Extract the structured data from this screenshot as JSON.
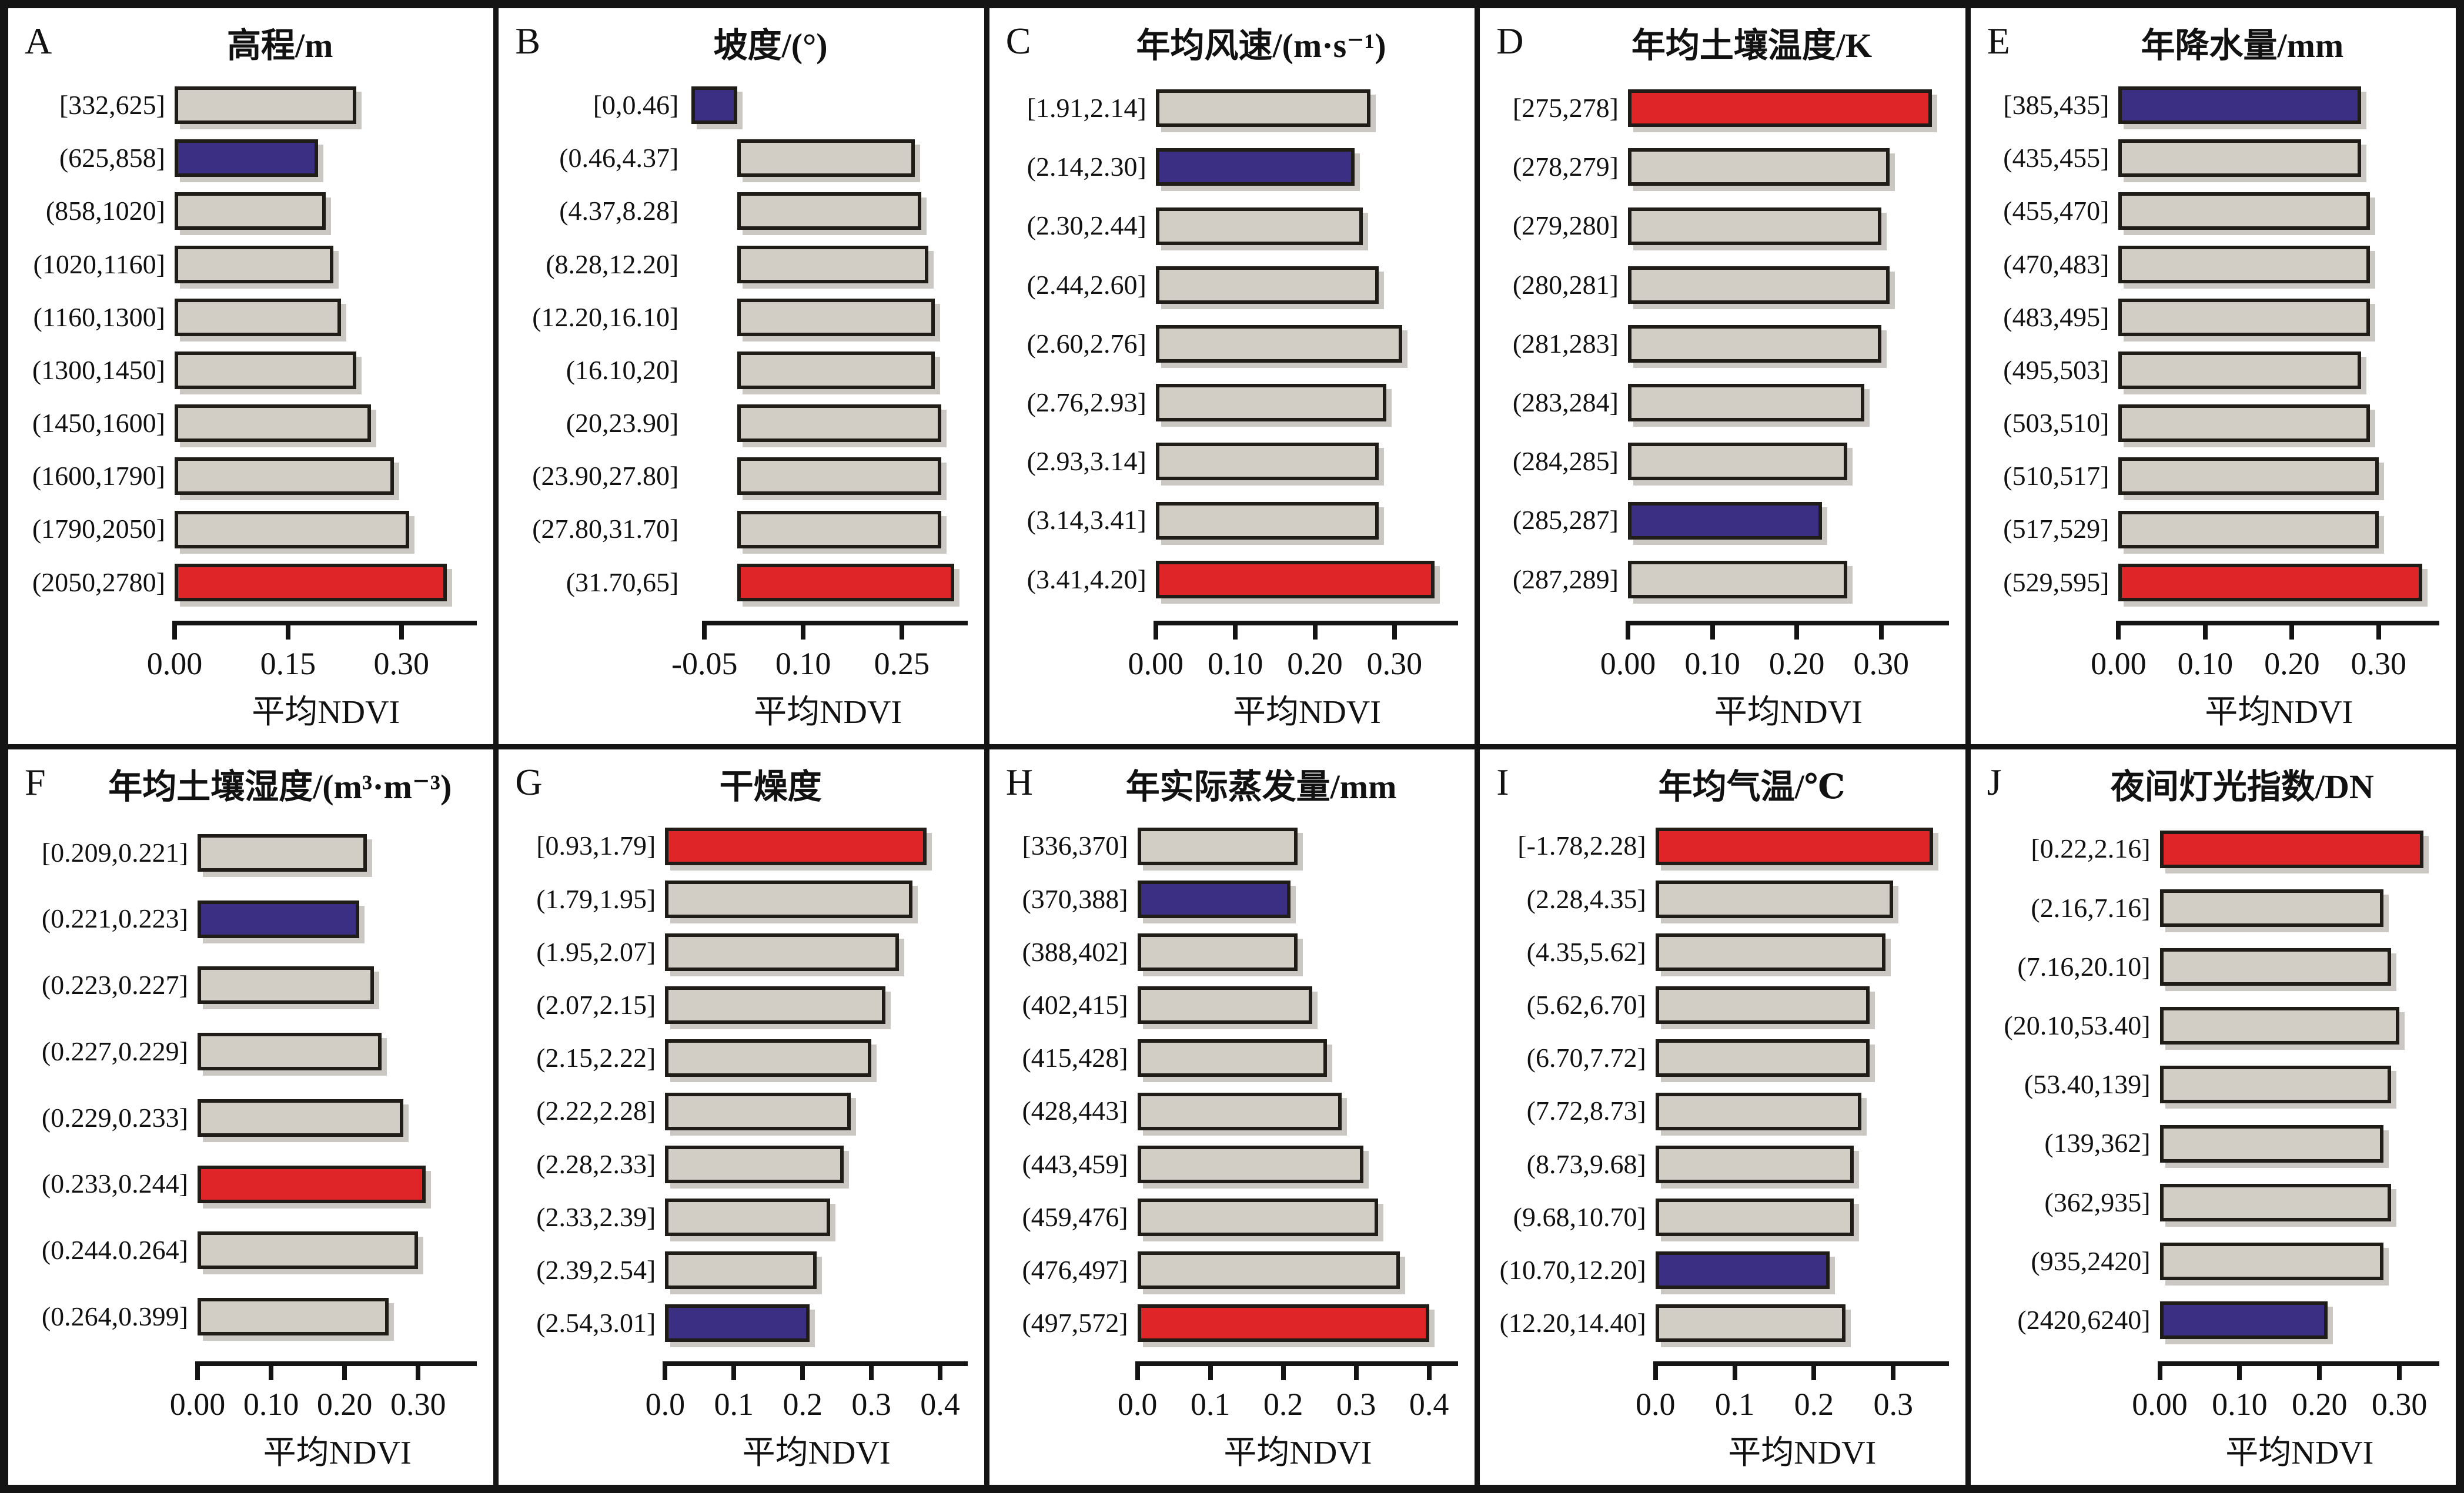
{
  "figure_caption": "",
  "colors": {
    "bar_base": "#d2cec6",
    "bar_min": "#3b2f84",
    "bar_max": "#e02528",
    "bar_border": "#201c18",
    "frame": "#141414",
    "background": "#ffffff"
  },
  "chart_data": [
    {
      "id": "A",
      "type": "bar",
      "orientation": "horizontal",
      "title": "高程/m",
      "xlabel": "平均NDVI",
      "categories": [
        "[332,625]",
        "(625,858]",
        "(858,1020]",
        "(1020,1160]",
        "(1160,1300]",
        "(1300,1450]",
        "(1450,1600]",
        "(1600,1790]",
        "(1790,2050]",
        "(2050,2780]"
      ],
      "values": [
        0.24,
        0.19,
        0.2,
        0.21,
        0.22,
        0.24,
        0.26,
        0.29,
        0.31,
        0.36
      ],
      "roles": [
        "base",
        "min",
        "base",
        "base",
        "base",
        "base",
        "base",
        "base",
        "base",
        "max"
      ],
      "xlim": [
        0,
        0.4
      ],
      "ticks": [
        0,
        0.15,
        0.3
      ],
      "tick_labels": [
        "0.00",
        "0.15",
        "0.30"
      ],
      "label_col_pct": 34
    },
    {
      "id": "B",
      "type": "bar",
      "orientation": "horizontal",
      "title": "坡度/(°)",
      "xlabel": "平均NDVI",
      "categories": [
        "[0,0.46]",
        "(0.46,4.37]",
        "(4.37,8.28]",
        "(8.28,12.20]",
        "(12.20,16.10]",
        "(16.10,20]",
        "(20,23.90]",
        "(23.90,27.80]",
        "(27.80,31.70]",
        "(31.70,65]"
      ],
      "values": [
        -0.07,
        0.27,
        0.28,
        0.29,
        0.3,
        0.3,
        0.31,
        0.31,
        0.31,
        0.33
      ],
      "roles": [
        "min",
        "base",
        "base",
        "base",
        "base",
        "base",
        "base",
        "base",
        "base",
        "max"
      ],
      "xlim": [
        -0.075,
        0.35
      ],
      "ticks": [
        -0.05,
        0.1,
        0.25
      ],
      "tick_labels": [
        "-0.05",
        "0.10",
        "0.25"
      ],
      "label_col_pct": 39
    },
    {
      "id": "C",
      "type": "bar",
      "orientation": "horizontal",
      "title": "年均风速/(m·s⁻¹)",
      "xlabel": "平均NDVI",
      "categories": [
        "[1.91,2.14]",
        "(2.14,2.30]",
        "(2.30,2.44]",
        "(2.44,2.60]",
        "(2.60,2.76]",
        "(2.76,2.93]",
        "(2.93,3.14]",
        "(3.14,3.41]",
        "(3.41,4.20]"
      ],
      "values": [
        0.27,
        0.25,
        0.26,
        0.28,
        0.31,
        0.29,
        0.28,
        0.28,
        0.35
      ],
      "roles": [
        "base",
        "min",
        "base",
        "base",
        "base",
        "base",
        "base",
        "base",
        "max"
      ],
      "xlim": [
        0,
        0.38
      ],
      "ticks": [
        0,
        0.1,
        0.2,
        0.3
      ],
      "tick_labels": [
        "0.00",
        "0.10",
        "0.20",
        "0.30"
      ],
      "label_col_pct": 34
    },
    {
      "id": "D",
      "type": "bar",
      "orientation": "horizontal",
      "title": "年均土壤温度/K",
      "xlabel": "平均NDVI",
      "categories": [
        "[275,278]",
        "(278,279]",
        "(279,280]",
        "(280,281]",
        "(281,283]",
        "(283,284]",
        "(284,285]",
        "(285,287]",
        "(287,289]"
      ],
      "values": [
        0.36,
        0.31,
        0.3,
        0.31,
        0.3,
        0.28,
        0.26,
        0.23,
        0.26
      ],
      "roles": [
        "max",
        "base",
        "base",
        "base",
        "base",
        "base",
        "base",
        "min",
        "base"
      ],
      "xlim": [
        0,
        0.38
      ],
      "ticks": [
        0,
        0.1,
        0.2,
        0.3
      ],
      "tick_labels": [
        "0.00",
        "0.10",
        "0.20",
        "0.30"
      ],
      "label_col_pct": 30
    },
    {
      "id": "E",
      "type": "bar",
      "orientation": "horizontal",
      "title": "年降水量/mm",
      "xlabel": "平均NDVI",
      "categories": [
        "[385,435]",
        "(435,455]",
        "(455,470]",
        "(470,483]",
        "(483,495]",
        "(495,503]",
        "(503,510]",
        "(510,517]",
        "(517,529]",
        "(529,595]"
      ],
      "values": [
        0.28,
        0.28,
        0.29,
        0.29,
        0.29,
        0.28,
        0.29,
        0.3,
        0.3,
        0.35
      ],
      "roles": [
        "min",
        "base",
        "base",
        "base",
        "base",
        "base",
        "base",
        "base",
        "base",
        "max"
      ],
      "xlim": [
        0,
        0.37
      ],
      "ticks": [
        0,
        0.1,
        0.2,
        0.3
      ],
      "tick_labels": [
        "0.00",
        "0.10",
        "0.20",
        "0.30"
      ],
      "label_col_pct": 30
    },
    {
      "id": "F",
      "type": "bar",
      "orientation": "horizontal",
      "title": "年均土壤湿度/(m³·m⁻³)",
      "xlabel": "平均NDVI",
      "categories": [
        "[0.209,0.221]",
        "(0.221,0.223]",
        "(0.223,0.227]",
        "(0.227,0.229]",
        "(0.229,0.233]",
        "(0.233,0.244]",
        "(0.244.0.264]",
        "(0.264,0.399]"
      ],
      "values": [
        0.23,
        0.22,
        0.24,
        0.25,
        0.28,
        0.31,
        0.3,
        0.26
      ],
      "roles": [
        "base",
        "min",
        "base",
        "base",
        "base",
        "max",
        "base",
        "base"
      ],
      "xlim": [
        0,
        0.38
      ],
      "ticks": [
        0,
        0.1,
        0.2,
        0.3
      ],
      "tick_labels": [
        "0.00",
        "0.10",
        "0.20",
        "0.30"
      ],
      "label_col_pct": 39
    },
    {
      "id": "G",
      "type": "bar",
      "orientation": "horizontal",
      "title": "干燥度",
      "xlabel": "平均NDVI",
      "categories": [
        "[0.93,1.79]",
        "(1.79,1.95]",
        "(1.95,2.07]",
        "(2.07,2.15]",
        "(2.15,2.22]",
        "(2.22,2.28]",
        "(2.28,2.33]",
        "(2.33,2.39]",
        "(2.39,2.54]",
        "(2.54,3.01]"
      ],
      "values": [
        0.38,
        0.36,
        0.34,
        0.32,
        0.3,
        0.27,
        0.26,
        0.24,
        0.22,
        0.21
      ],
      "roles": [
        "max",
        "base",
        "base",
        "base",
        "base",
        "base",
        "base",
        "base",
        "base",
        "min"
      ],
      "xlim": [
        0,
        0.44
      ],
      "ticks": [
        0,
        0.1,
        0.2,
        0.3,
        0.4
      ],
      "tick_labels": [
        "0.0",
        "0.1",
        "0.2",
        "0.3",
        "0.4"
      ],
      "label_col_pct": 34
    },
    {
      "id": "H",
      "type": "bar",
      "orientation": "horizontal",
      "title": "年实际蒸发量/mm",
      "xlabel": "平均NDVI",
      "categories": [
        "[336,370]",
        "(370,388]",
        "(388,402]",
        "(402,415]",
        "(415,428]",
        "(428,443]",
        "(443,459]",
        "(459,476]",
        "(476,497]",
        "(497,572]"
      ],
      "values": [
        0.22,
        0.21,
        0.22,
        0.24,
        0.26,
        0.28,
        0.31,
        0.33,
        0.36,
        0.4
      ],
      "roles": [
        "base",
        "min",
        "base",
        "base",
        "base",
        "base",
        "base",
        "base",
        "base",
        "max"
      ],
      "xlim": [
        0,
        0.44
      ],
      "ticks": [
        0,
        0.1,
        0.2,
        0.3,
        0.4
      ],
      "tick_labels": [
        "0.0",
        "0.1",
        "0.2",
        "0.3",
        "0.4"
      ],
      "label_col_pct": 30
    },
    {
      "id": "I",
      "type": "bar",
      "orientation": "horizontal",
      "title": "年均气温/℃",
      "xlabel": "平均NDVI",
      "categories": [
        "[-1.78,2.28]",
        "(2.28,4.35]",
        "(4.35,5.62]",
        "(5.62,6.70]",
        "(6.70,7.72]",
        "(7.72,8.73]",
        "(8.73,9.68]",
        "(9.68,10.70]",
        "(10.70,12.20]",
        "(12.20,14.40]"
      ],
      "values": [
        0.35,
        0.3,
        0.29,
        0.27,
        0.27,
        0.26,
        0.25,
        0.25,
        0.22,
        0.24
      ],
      "roles": [
        "max",
        "base",
        "base",
        "base",
        "base",
        "base",
        "base",
        "base",
        "min",
        "base"
      ],
      "xlim": [
        0,
        0.37
      ],
      "ticks": [
        0,
        0.1,
        0.2,
        0.3
      ],
      "tick_labels": [
        "0.0",
        "0.1",
        "0.2",
        "0.3"
      ],
      "label_col_pct": 36
    },
    {
      "id": "J",
      "type": "bar",
      "orientation": "horizontal",
      "title": "夜间灯光指数/DN",
      "xlabel": "平均NDVI",
      "categories": [
        "[0.22,2.16]",
        "(2.16,7.16]",
        "(7.16,20.10]",
        "(20.10,53.40]",
        "(53.40,139]",
        "(139,362]",
        "(362,935]",
        "(935,2420]",
        "(2420,6240]"
      ],
      "values": [
        0.33,
        0.28,
        0.29,
        0.3,
        0.29,
        0.28,
        0.29,
        0.28,
        0.21
      ],
      "roles": [
        "max",
        "base",
        "base",
        "base",
        "base",
        "base",
        "base",
        "base",
        "min"
      ],
      "xlim": [
        0,
        0.35
      ],
      "ticks": [
        0,
        0.1,
        0.2,
        0.3
      ],
      "tick_labels": [
        "0.00",
        "0.10",
        "0.20",
        "0.30"
      ],
      "label_col_pct": 39
    }
  ]
}
